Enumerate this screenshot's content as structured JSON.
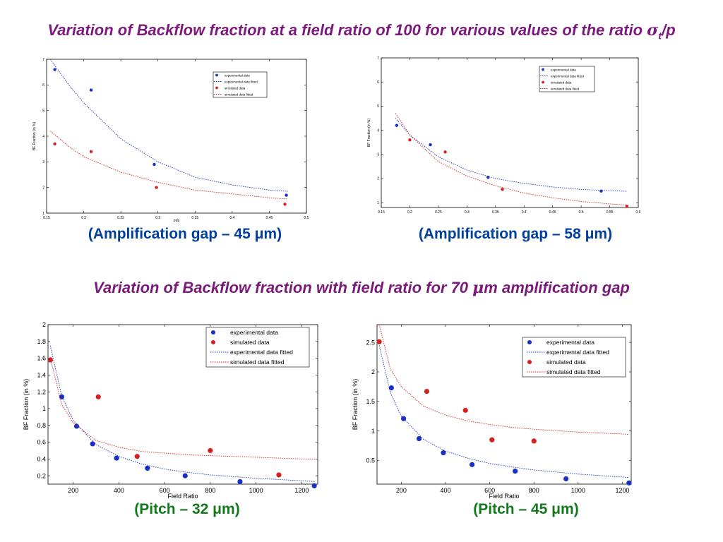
{
  "header": {
    "top_title_prefix": "Variation of Backflow fraction at a field ratio of 100 for various values of the ratio ",
    "top_title_sigma": "σ",
    "top_title_sub": "t",
    "top_title_suffix": "/p",
    "mid_title_prefix": "Variation of Backflow fraction with field ratio for 70 ",
    "mid_title_mu": "μ",
    "mid_title_suffix": "m amplification gap"
  },
  "captions": {
    "c1": "(Amplification gap – 45 μm)",
    "c2": "(Amplification gap – 58 μm)",
    "c3": "(Pitch – 32 μm)",
    "c4": "(Pitch – 45 μm)"
  },
  "colors": {
    "title": "#7a1a7a",
    "caption_blue": "#003f9e",
    "caption_green": "#137a1c",
    "exp": "#1a2fc8",
    "sim": "#d42020"
  },
  "chart_data": [
    {
      "type": "scatter",
      "xlabel": "σt/p",
      "ylabel": "BF Fraction (in %)",
      "xlim": [
        0.15,
        0.5
      ],
      "ylim": [
        1,
        7
      ],
      "xticks": [
        0.15,
        0.2,
        0.25,
        0.3,
        0.35,
        0.4,
        0.45,
        0.5
      ],
      "xtick_labels": [
        "0.15",
        "0.2",
        "0.25",
        "0.3",
        "0.35",
        "0.4",
        "0.45",
        "0.5"
      ],
      "yticks": [
        1,
        2,
        3,
        4,
        5,
        6,
        7
      ],
      "ytick_labels": [
        "1",
        "2",
        "3",
        "4",
        "5",
        "6",
        "7"
      ],
      "legend": [
        "experimental data",
        "experimental data fitted",
        "simulated data",
        "simulated data fitted"
      ],
      "legend_position": "top-right",
      "series": [
        {
          "name": "experimental data",
          "kind": "points",
          "color": "blue",
          "x": [
            0.161,
            0.21,
            0.295,
            0.473
          ],
          "y": [
            6.6,
            5.8,
            2.9,
            1.7
          ]
        },
        {
          "name": "simulated data",
          "kind": "points",
          "color": "red",
          "x": [
            0.161,
            0.21,
            0.298,
            0.471
          ],
          "y": [
            3.7,
            3.4,
            2.0,
            1.35
          ]
        },
        {
          "name": "experimental data fitted",
          "kind": "fit",
          "color": "blue",
          "x": [
            0.155,
            0.18,
            0.2,
            0.25,
            0.3,
            0.35,
            0.4,
            0.45,
            0.475
          ],
          "y": [
            7.0,
            6.0,
            5.3,
            3.9,
            3.0,
            2.4,
            2.1,
            1.9,
            1.85
          ]
        },
        {
          "name": "simulated data fitted",
          "kind": "fit",
          "color": "red",
          "x": [
            0.155,
            0.18,
            0.2,
            0.25,
            0.3,
            0.35,
            0.4,
            0.45,
            0.475
          ],
          "y": [
            4.2,
            3.6,
            3.2,
            2.6,
            2.2,
            1.9,
            1.75,
            1.6,
            1.55
          ]
        }
      ]
    },
    {
      "type": "scatter",
      "xlabel": "",
      "ylabel": "BF Fraction (in %)",
      "xlim": [
        0.15,
        0.6
      ],
      "ylim": [
        0.8,
        7
      ],
      "xticks": [
        0.15,
        0.2,
        0.25,
        0.3,
        0.35,
        0.4,
        0.45,
        0.5,
        0.55,
        0.6
      ],
      "xtick_labels": [
        "0.15",
        "0.2",
        "0.25",
        "0.3",
        "0.35",
        "0.4",
        "0.45",
        "0.5",
        "0.55",
        "0.6"
      ],
      "yticks": [
        1,
        2,
        3,
        4,
        5,
        6,
        7
      ],
      "ytick_labels": [
        "1",
        "2",
        "3",
        "4",
        "5",
        "6",
        "7"
      ],
      "legend": [
        "experimental data",
        "experimental data fitted",
        "simulated data",
        "simulated data fitted"
      ],
      "legend_position": "top-right",
      "series": [
        {
          "name": "experimental data",
          "kind": "points",
          "color": "blue",
          "x": [
            0.177,
            0.236,
            0.337,
            0.535
          ],
          "y": [
            4.2,
            3.4,
            2.05,
            1.48
          ]
        },
        {
          "name": "simulated data",
          "kind": "points",
          "color": "red",
          "x": [
            0.2,
            0.262,
            0.362,
            0.58
          ],
          "y": [
            3.6,
            3.1,
            1.55,
            0.85
          ]
        },
        {
          "name": "experimental data fitted",
          "kind": "fit",
          "color": "blue",
          "x": [
            0.175,
            0.2,
            0.25,
            0.3,
            0.35,
            0.4,
            0.45,
            0.5,
            0.55,
            0.58
          ],
          "y": [
            4.5,
            3.8,
            2.9,
            2.35,
            2.0,
            1.8,
            1.65,
            1.55,
            1.5,
            1.47
          ]
        },
        {
          "name": "simulated data fitted",
          "kind": "fit",
          "color": "red",
          "x": [
            0.175,
            0.2,
            0.25,
            0.3,
            0.35,
            0.4,
            0.45,
            0.5,
            0.55,
            0.58
          ],
          "y": [
            4.7,
            3.8,
            2.7,
            2.1,
            1.7,
            1.4,
            1.2,
            1.05,
            0.95,
            0.9
          ]
        }
      ]
    },
    {
      "type": "scatter",
      "xlabel": "Field Ratio",
      "ylabel": "BF Fraction (in %)",
      "xlim": [
        90,
        1270
      ],
      "ylim": [
        0.1,
        2.0
      ],
      "xticks": [
        200,
        400,
        600,
        800,
        1000,
        1200
      ],
      "xtick_labels": [
        "200",
        "400",
        "600",
        "800",
        "1000",
        "1200"
      ],
      "yticks": [
        0.2,
        0.4,
        0.6,
        0.8,
        1.0,
        1.2,
        1.4,
        1.6,
        1.8,
        2.0
      ],
      "ytick_labels": [
        "0.2",
        "0.4",
        "0.6",
        "0.8",
        "1",
        "1.2",
        "1.4",
        "1.6",
        "1.8",
        "2"
      ],
      "legend": [
        "experimental data",
        "simulated data",
        "experimental data fitted",
        "simulated data fitted"
      ],
      "legend_position": "top-right",
      "series": [
        {
          "name": "experimental data",
          "kind": "points",
          "color": "blue",
          "x": [
            100,
            150,
            215,
            285,
            390,
            525,
            690,
            930,
            1255
          ],
          "y": [
            1.58,
            1.14,
            0.79,
            0.58,
            0.41,
            0.29,
            0.2,
            0.13,
            0.08
          ]
        },
        {
          "name": "simulated data",
          "kind": "points",
          "color": "red",
          "x": [
            100,
            310,
            480,
            800,
            1100
          ],
          "y": [
            1.58,
            1.14,
            0.43,
            0.5,
            0.21
          ]
        },
        {
          "name": "experimental data fitted",
          "kind": "fit",
          "color": "blue",
          "x": [
            100,
            150,
            200,
            300,
            400,
            500,
            600,
            700,
            800,
            1000,
            1200,
            1260
          ],
          "y": [
            1.75,
            1.15,
            0.86,
            0.57,
            0.43,
            0.34,
            0.28,
            0.24,
            0.21,
            0.17,
            0.14,
            0.13
          ]
        },
        {
          "name": "simulated data fitted",
          "kind": "fit",
          "color": "red",
          "x": [
            100,
            150,
            200,
            300,
            400,
            500,
            600,
            700,
            800,
            1000,
            1200,
            1260
          ],
          "y": [
            1.6,
            1.05,
            0.83,
            0.62,
            0.54,
            0.49,
            0.47,
            0.45,
            0.44,
            0.42,
            0.4,
            0.4
          ]
        }
      ]
    },
    {
      "type": "scatter",
      "xlabel": "Field Ratio",
      "ylabel": "BF Fraction (in %)",
      "xlim": [
        90,
        1240
      ],
      "ylim": [
        0.1,
        2.8
      ],
      "xticks": [
        200,
        400,
        600,
        800,
        1000,
        1200
      ],
      "xtick_labels": [
        "200",
        "400",
        "600",
        "800",
        "1000",
        "1200"
      ],
      "yticks": [
        0.5,
        1.0,
        1.5,
        2.0,
        2.5
      ],
      "ytick_labels": [
        "0.5",
        "1",
        "1.5",
        "2",
        "2.5"
      ],
      "legend": [
        "experimental data",
        "experimental data fitted",
        "simulated data",
        "simulated data fitted"
      ],
      "legend_position": "top-right",
      "series": [
        {
          "name": "experimental data",
          "kind": "points",
          "color": "blue",
          "x": [
            155,
            210,
            280,
            390,
            520,
            715,
            945,
            1230
          ],
          "y": [
            1.73,
            1.21,
            0.87,
            0.63,
            0.43,
            0.32,
            0.19,
            0.12
          ]
        },
        {
          "name": "simulated data",
          "kind": "points",
          "color": "red",
          "x": [
            100,
            315,
            490,
            610,
            800
          ],
          "y": [
            2.51,
            1.67,
            1.35,
            0.85,
            0.83
          ]
        },
        {
          "name": "experimental data fitted",
          "kind": "fit",
          "color": "blue",
          "x": [
            100,
            150,
            200,
            300,
            400,
            500,
            600,
            700,
            800,
            1000,
            1200,
            1230
          ],
          "y": [
            2.45,
            1.65,
            1.25,
            0.86,
            0.66,
            0.54,
            0.45,
            0.39,
            0.34,
            0.27,
            0.22,
            0.21
          ]
        },
        {
          "name": "simulated data fitted",
          "kind": "fit",
          "color": "red",
          "x": [
            100,
            150,
            200,
            300,
            400,
            500,
            600,
            700,
            800,
            1000,
            1200,
            1230
          ],
          "y": [
            2.8,
            2.05,
            1.75,
            1.42,
            1.27,
            1.17,
            1.11,
            1.06,
            1.03,
            0.98,
            0.95,
            0.94
          ]
        }
      ]
    }
  ]
}
